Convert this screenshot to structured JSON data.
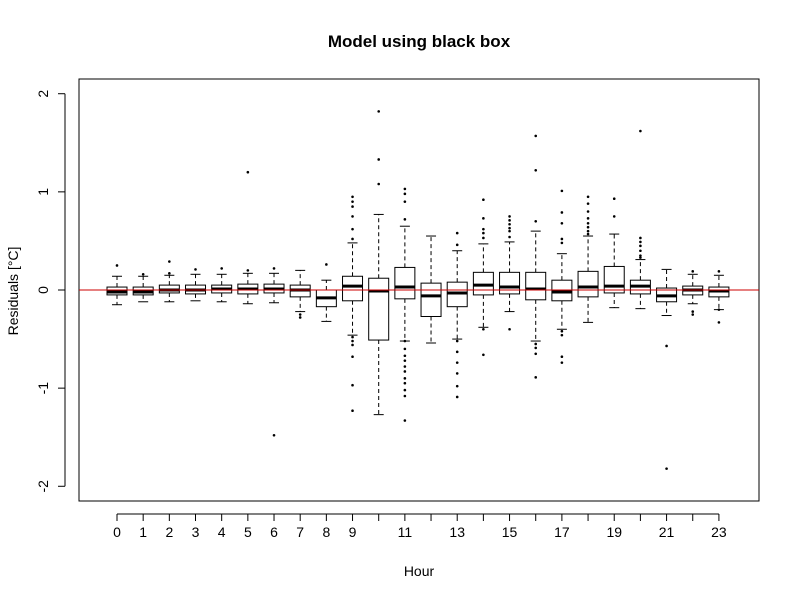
{
  "chart_data": {
    "type": "boxplot",
    "title": "Model using black box",
    "xlabel": "Hour",
    "ylabel": "Residuals [°C]",
    "ylim": [
      -2.15,
      2.15
    ],
    "yticks": [
      -2,
      -1,
      0,
      1,
      2
    ],
    "xtick_labels": [
      "0",
      "1",
      "2",
      "3",
      "4",
      "5",
      "6",
      "7",
      "8",
      "9",
      "11",
      "13",
      "15",
      "17",
      "19",
      "21",
      "23"
    ],
    "reference_line": {
      "y": 0,
      "color": "#cc0000"
    },
    "grid": false,
    "boxes": [
      {
        "hour": 0,
        "q1": -0.05,
        "median": -0.02,
        "q3": 0.03,
        "whisker_low": -0.15,
        "whisker_high": 0.14,
        "outliers": [
          0.25
        ]
      },
      {
        "hour": 1,
        "q1": -0.05,
        "median": -0.02,
        "q3": 0.03,
        "whisker_low": -0.12,
        "whisker_high": 0.14,
        "outliers": [
          0.16
        ]
      },
      {
        "hour": 2,
        "q1": -0.03,
        "median": 0.0,
        "q3": 0.05,
        "whisker_low": -0.12,
        "whisker_high": 0.15,
        "outliers": [
          0.29,
          0.17
        ]
      },
      {
        "hour": 3,
        "q1": -0.04,
        "median": 0.0,
        "q3": 0.05,
        "whisker_low": -0.11,
        "whisker_high": 0.16,
        "outliers": [
          0.21
        ]
      },
      {
        "hour": 4,
        "q1": -0.03,
        "median": 0.01,
        "q3": 0.05,
        "whisker_low": -0.12,
        "whisker_high": 0.16,
        "outliers": [
          0.22
        ]
      },
      {
        "hour": 5,
        "q1": -0.04,
        "median": 0.01,
        "q3": 0.06,
        "whisker_low": -0.14,
        "whisker_high": 0.17,
        "outliers": [
          1.2,
          0.2
        ]
      },
      {
        "hour": 6,
        "q1": -0.03,
        "median": 0.01,
        "q3": 0.06,
        "whisker_low": -0.13,
        "whisker_high": 0.17,
        "outliers": [
          0.22,
          -1.48
        ]
      },
      {
        "hour": 7,
        "q1": -0.07,
        "median": 0.0,
        "q3": 0.05,
        "whisker_low": -0.22,
        "whisker_high": 0.2,
        "outliers": [
          -0.25,
          -0.28
        ]
      },
      {
        "hour": 8,
        "q1": -0.17,
        "median": -0.08,
        "q3": 0.0,
        "whisker_low": -0.32,
        "whisker_high": 0.1,
        "outliers": [
          0.26
        ]
      },
      {
        "hour": 9,
        "q1": -0.11,
        "median": 0.04,
        "q3": 0.14,
        "whisker_low": -0.46,
        "whisker_high": 0.48,
        "outliers": [
          0.95,
          0.9,
          0.85,
          0.75,
          0.62,
          0.52,
          -0.48,
          -0.52,
          -0.56,
          -0.68,
          -0.97,
          -1.23
        ]
      },
      {
        "hour": 10,
        "q1": -0.51,
        "median": -0.01,
        "q3": 0.12,
        "whisker_low": -1.27,
        "whisker_high": 0.77,
        "outliers": [
          1.82,
          1.33,
          1.08
        ]
      },
      {
        "hour": 11,
        "q1": -0.09,
        "median": 0.03,
        "q3": 0.23,
        "whisker_low": -0.52,
        "whisker_high": 0.65,
        "outliers": [
          1.03,
          0.98,
          0.9,
          0.72,
          -0.52,
          -0.6,
          -0.67,
          -0.72,
          -0.78,
          -0.83,
          -0.9,
          -0.95,
          -1.02,
          -1.08,
          -1.33
        ]
      },
      {
        "hour": 12,
        "q1": -0.27,
        "median": -0.06,
        "q3": 0.07,
        "whisker_low": -0.54,
        "whisker_high": 0.55,
        "outliers": []
      },
      {
        "hour": 13,
        "q1": -0.17,
        "median": -0.03,
        "q3": 0.08,
        "whisker_low": -0.5,
        "whisker_high": 0.4,
        "outliers": [
          0.58,
          0.46,
          -0.52,
          -0.63,
          -0.74,
          -0.85,
          -0.98,
          -1.09
        ]
      },
      {
        "hour": 14,
        "q1": -0.05,
        "median": 0.05,
        "q3": 0.18,
        "whisker_low": -0.38,
        "whisker_high": 0.47,
        "outliers": [
          0.92,
          0.73,
          0.62,
          0.58,
          0.53,
          -0.4,
          -0.66
        ]
      },
      {
        "hour": 15,
        "q1": -0.04,
        "median": 0.03,
        "q3": 0.18,
        "whisker_low": -0.22,
        "whisker_high": 0.49,
        "outliers": [
          0.75,
          0.71,
          0.67,
          0.63,
          0.6,
          0.54,
          -0.4
        ]
      },
      {
        "hour": 16,
        "q1": -0.1,
        "median": 0.01,
        "q3": 0.18,
        "whisker_low": -0.52,
        "whisker_high": 0.6,
        "outliers": [
          1.57,
          1.22,
          0.7,
          -0.55,
          -0.59,
          -0.65,
          -0.89
        ]
      },
      {
        "hour": 17,
        "q1": -0.11,
        "median": -0.02,
        "q3": 0.1,
        "whisker_low": -0.4,
        "whisker_high": 0.37,
        "outliers": [
          1.01,
          0.79,
          0.68,
          0.52,
          0.48,
          -0.42,
          -0.46,
          -0.68,
          -0.74
        ]
      },
      {
        "hour": 18,
        "q1": -0.07,
        "median": 0.03,
        "q3": 0.19,
        "whisker_low": -0.33,
        "whisker_high": 0.55,
        "outliers": [
          0.95,
          0.88,
          0.8,
          0.73,
          0.68,
          0.64,
          0.6,
          0.57
        ]
      },
      {
        "hour": 19,
        "q1": -0.03,
        "median": 0.04,
        "q3": 0.24,
        "whisker_low": -0.18,
        "whisker_high": 0.57,
        "outliers": [
          0.93,
          0.75
        ]
      },
      {
        "hour": 20,
        "q1": -0.04,
        "median": 0.04,
        "q3": 0.1,
        "whisker_low": -0.19,
        "whisker_high": 0.31,
        "outliers": [
          1.62,
          0.53,
          0.49,
          0.45,
          0.4,
          0.35,
          0.33
        ]
      },
      {
        "hour": 21,
        "q1": -0.12,
        "median": -0.06,
        "q3": 0.02,
        "whisker_low": -0.26,
        "whisker_high": 0.21,
        "outliers": [
          -0.57,
          -1.82
        ]
      },
      {
        "hour": 22,
        "q1": -0.05,
        "median": 0.0,
        "q3": 0.04,
        "whisker_low": -0.14,
        "whisker_high": 0.16,
        "outliers": [
          0.19,
          -0.22,
          -0.25
        ]
      },
      {
        "hour": 23,
        "q1": -0.07,
        "median": -0.01,
        "q3": 0.03,
        "whisker_low": -0.2,
        "whisker_high": 0.15,
        "outliers": [
          0.19,
          -0.2,
          -0.33
        ]
      }
    ]
  }
}
